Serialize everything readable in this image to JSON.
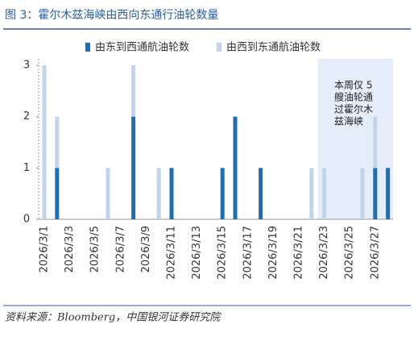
{
  "chart_data": {
    "type": "stacked_bar",
    "title": "图 3：霍尔木兹海峡由西向东通行油轮数量",
    "categories": [
      "2026/3/1",
      null,
      "2026/3/3",
      null,
      "2026/3/5",
      null,
      "2026/3/7",
      null,
      "2026/3/9",
      null,
      "2026/3/11",
      null,
      "2026/3/13",
      null,
      "2026/3/15",
      null,
      "2026/3/17",
      null,
      "2026/3/19",
      null,
      "2026/3/21",
      null,
      "2026/3/23",
      null,
      "2026/3/25",
      null,
      "2026/3/27",
      null
    ],
    "series": [
      {
        "name": "由东到西通航油轮数",
        "color": "#1f6db3",
        "values": [
          0,
          1,
          0,
          0,
          0,
          0,
          0,
          2,
          0,
          0,
          1,
          0,
          0,
          0,
          1,
          2,
          0,
          1,
          0,
          0,
          0,
          0,
          0,
          0,
          0,
          0,
          1,
          1
        ]
      },
      {
        "name": "由西到东通航油轮数",
        "color": "#c3d4ea",
        "values": [
          3,
          1,
          0,
          0,
          0,
          1,
          0,
          1,
          0,
          1,
          0,
          0,
          0,
          0,
          0,
          0,
          0,
          0,
          0,
          0,
          0,
          1,
          1,
          0,
          0,
          1,
          1,
          0
        ]
      }
    ],
    "ylim": [
      0,
      3
    ],
    "yticks": [
      0,
      1,
      2,
      3
    ],
    "grid": false,
    "highlight_from": "2026/3/23",
    "annotation": [
      "本周仅 5",
      "艘油轮通",
      "过霍尔木",
      "兹海峡"
    ],
    "source": "资料来源：Bloomberg，中国银河证券研究院"
  }
}
